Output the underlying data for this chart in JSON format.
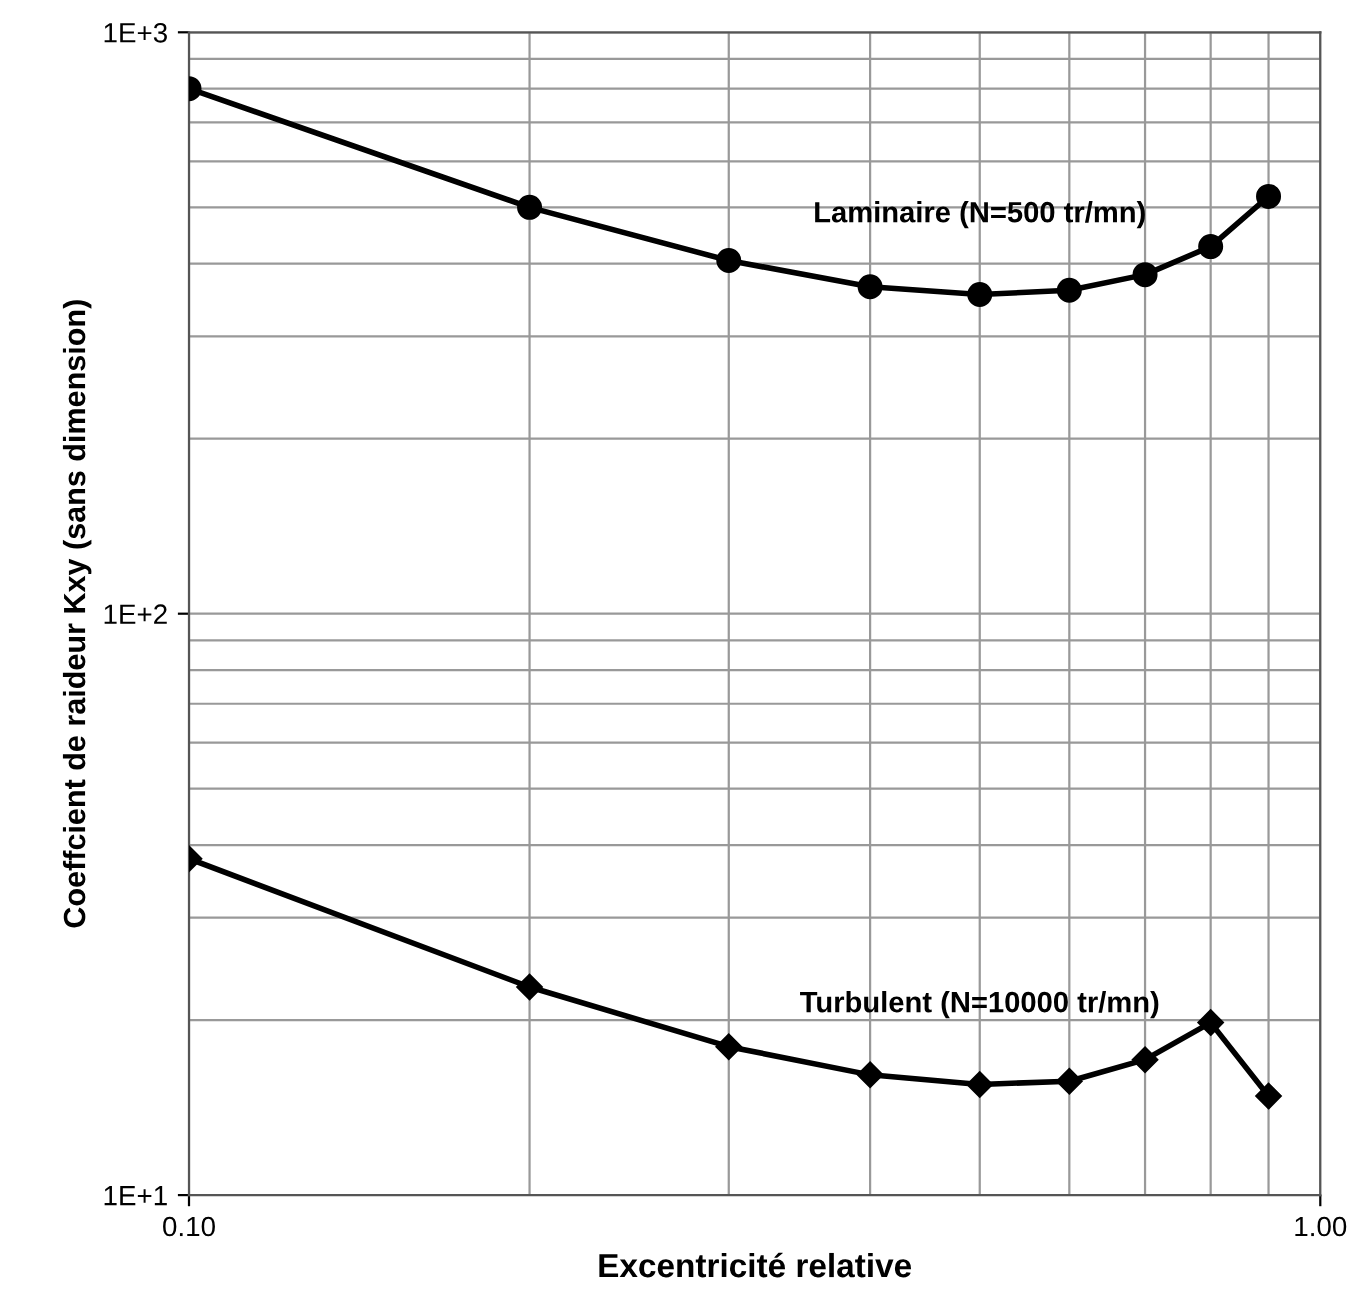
{
  "chart_data": {
    "type": "line",
    "xlabel": "Excentricité relative",
    "ylabel": "Coeffcient de raideur Kxy (sans dimension)",
    "log": "xy",
    "grid": true,
    "legend": false,
    "line_style": "solid",
    "x": [
      0.1,
      0.2,
      0.3,
      0.4,
      0.5,
      0.6,
      0.7,
      0.8,
      0.9
    ],
    "xlim": [
      0.1,
      1.0
    ],
    "xticks": [
      {
        "value": 0.1,
        "label": "0.10"
      },
      {
        "value": 1.0,
        "label": "1.00"
      }
    ],
    "ylim": [
      10,
      1000
    ],
    "yticks": [
      {
        "value": 10,
        "label": "1E+1"
      },
      {
        "value": 100,
        "label": "1E+2"
      },
      {
        "value": 1000,
        "label": "1E+3"
      }
    ],
    "series": [
      {
        "name": "Laminaire (N=500 tr/mn)",
        "color": "#000000",
        "marker": "circle",
        "values": [
          800,
          500,
          405,
          365,
          354,
          360,
          383,
          428,
          522
        ]
      },
      {
        "name": "Turbulent (N=10000 tr/mn)",
        "color": "#000000",
        "marker": "diamond",
        "values": [
          37.9,
          22.8,
          18.0,
          16.1,
          15.5,
          15.7,
          17.1,
          19.8,
          14.8
        ]
      }
    ]
  }
}
